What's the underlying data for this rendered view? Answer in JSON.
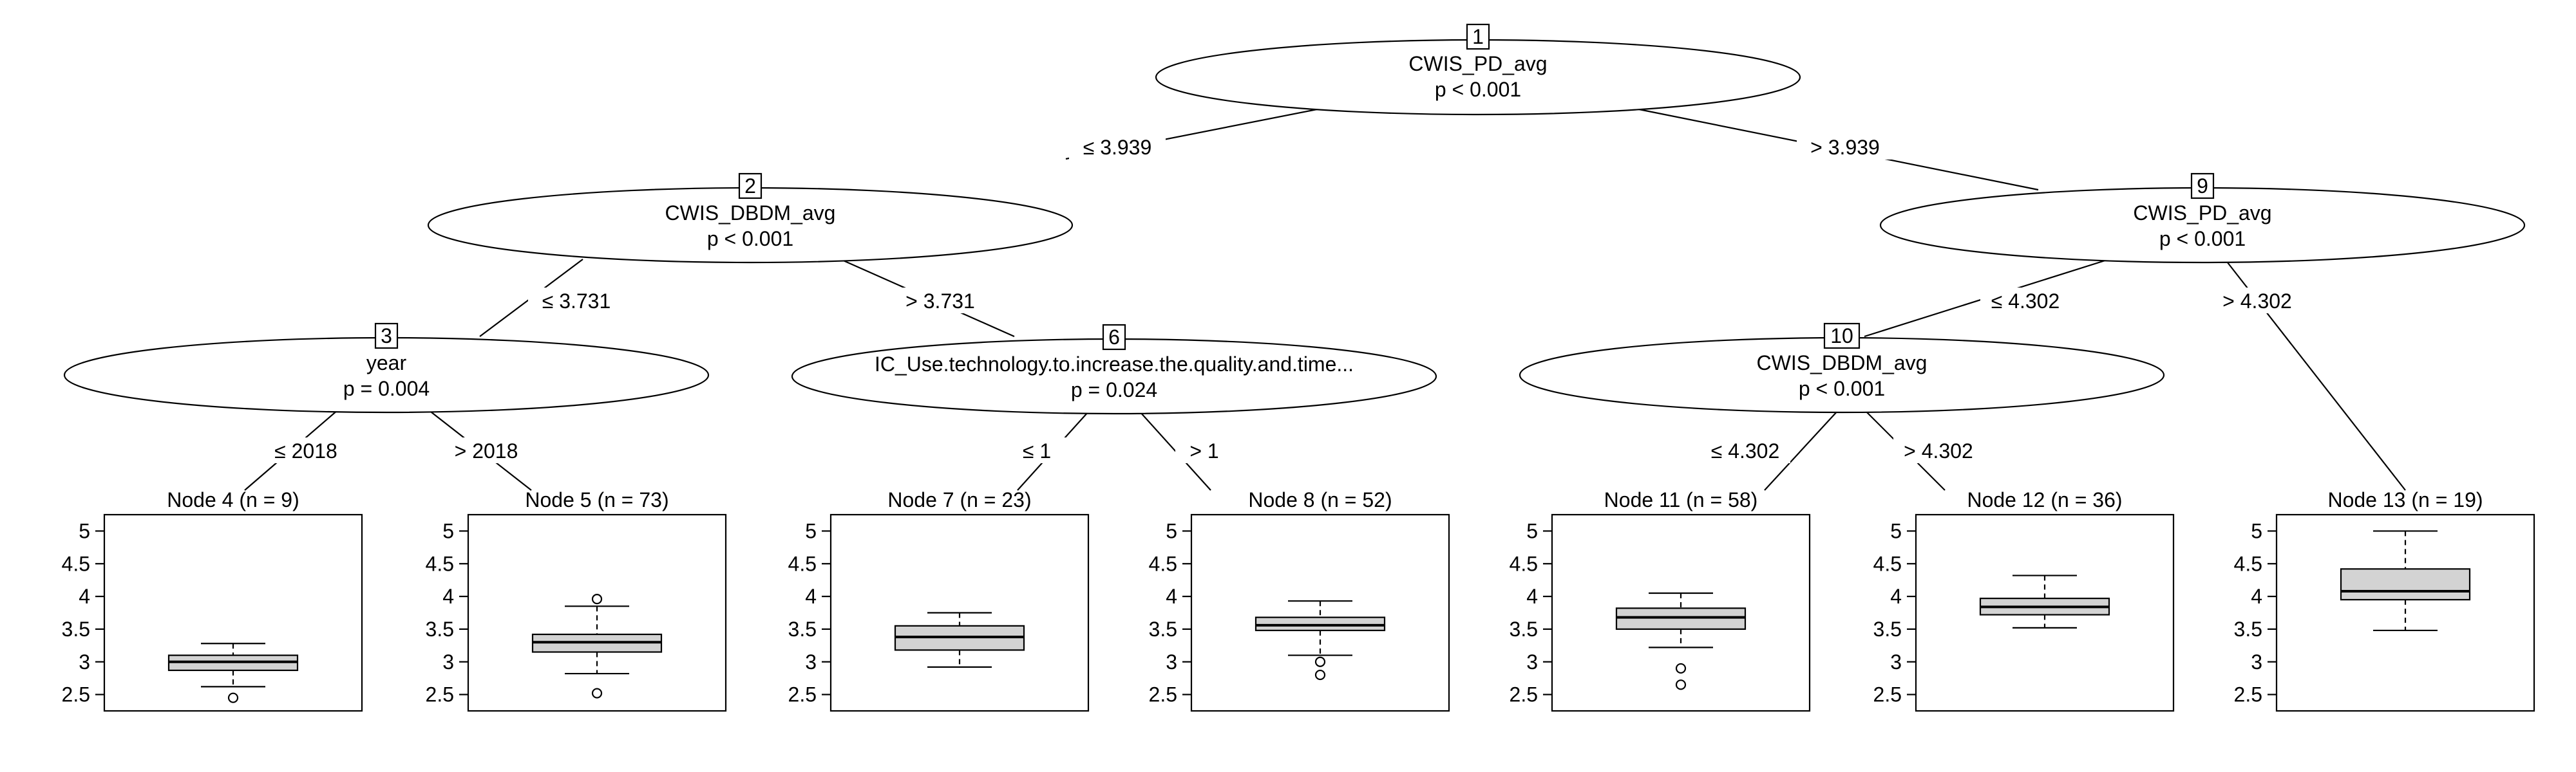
{
  "inner_nodes": [
    {
      "id": "1",
      "var": "CWIS_PD_avg",
      "p": "p < 0.001"
    },
    {
      "id": "2",
      "var": "CWIS_DBDM_avg",
      "p": "p < 0.001"
    },
    {
      "id": "3",
      "var": "year",
      "p": "p = 0.004"
    },
    {
      "id": "6",
      "var": "IC_Use.technology.to.increase.the.quality.and.time...",
      "p": "p = 0.024"
    },
    {
      "id": "9",
      "var": "CWIS_PD_avg",
      "p": "p < 0.001"
    },
    {
      "id": "10",
      "var": "CWIS_DBDM_avg",
      "p": "p < 0.001"
    }
  ],
  "edge_labels": [
    {
      "from": "1",
      "to": "2",
      "label": "≤ 3.939"
    },
    {
      "from": "1",
      "to": "9",
      "label": "> 3.939"
    },
    {
      "from": "2",
      "to": "3",
      "label": "≤ 3.731"
    },
    {
      "from": "2",
      "to": "6",
      "label": "> 3.731"
    },
    {
      "from": "3",
      "to": "4",
      "label": "≤ 2018"
    },
    {
      "from": "3",
      "to": "5",
      "label": "> 2018"
    },
    {
      "from": "6",
      "to": "7",
      "label": "≤ 1"
    },
    {
      "from": "6",
      "to": "8",
      "label": "> 1"
    },
    {
      "from": "9",
      "to": "10",
      "label": "≤ 4.302"
    },
    {
      "from": "9",
      "to": "13",
      "label": "> 4.302"
    },
    {
      "from": "10",
      "to": "11",
      "label": "≤ 4.302"
    },
    {
      "from": "10",
      "to": "12",
      "label": "> 4.302"
    }
  ],
  "y_ticks": [
    "2.5",
    "3",
    "3.5",
    "4",
    "4.5",
    "5"
  ],
  "chart_data": {
    "type": "boxplot",
    "ylim": [
      2.25,
      5.25
    ],
    "y_ticks": [
      2.5,
      3,
      3.5,
      4,
      4.5,
      5
    ],
    "panels": [
      {
        "title": "Node 4 (n = 9)",
        "q1": 2.87,
        "median": 3.0,
        "q3": 3.1,
        "whisker_low": 2.62,
        "whisker_high": 3.28,
        "outliers": [
          2.45
        ]
      },
      {
        "title": "Node 5 (n = 73)",
        "q1": 3.15,
        "median": 3.3,
        "q3": 3.42,
        "whisker_low": 2.82,
        "whisker_high": 3.85,
        "outliers": [
          3.96,
          2.52
        ]
      },
      {
        "title": "Node 7 (n = 23)",
        "q1": 3.18,
        "median": 3.38,
        "q3": 3.55,
        "whisker_low": 2.92,
        "whisker_high": 3.75,
        "outliers": []
      },
      {
        "title": "Node 8 (n = 52)",
        "q1": 3.48,
        "median": 3.56,
        "q3": 3.68,
        "whisker_low": 3.1,
        "whisker_high": 3.93,
        "outliers": [
          3.0,
          2.8
        ]
      },
      {
        "title": "Node 11 (n = 58)",
        "q1": 3.5,
        "median": 3.68,
        "q3": 3.82,
        "whisker_low": 3.22,
        "whisker_high": 4.05,
        "outliers": [
          2.9,
          2.65
        ]
      },
      {
        "title": "Node 12 (n = 36)",
        "q1": 3.72,
        "median": 3.84,
        "q3": 3.97,
        "whisker_low": 3.52,
        "whisker_high": 4.32,
        "outliers": []
      },
      {
        "title": "Node 13 (n = 19)",
        "q1": 3.95,
        "median": 4.08,
        "q3": 4.42,
        "whisker_low": 3.48,
        "whisker_high": 5.0,
        "outliers": []
      }
    ]
  }
}
